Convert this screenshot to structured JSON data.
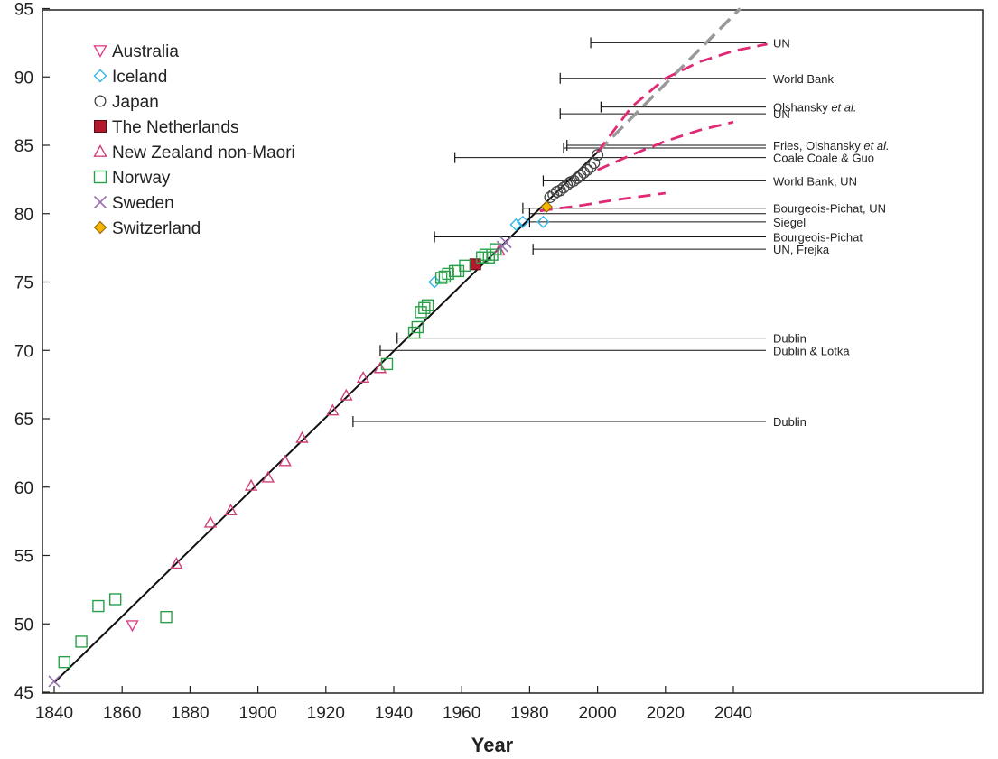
{
  "chart_data": {
    "type": "scatter",
    "xlabel": "Year",
    "ylabel": "",
    "xlim": [
      1840,
      2050
    ],
    "ylim": [
      45,
      95
    ],
    "xticks": [
      1840,
      1860,
      1880,
      1900,
      1920,
      1940,
      1960,
      1980,
      2000,
      2020,
      2040
    ],
    "yticks": [
      45,
      50,
      55,
      60,
      65,
      70,
      75,
      80,
      85,
      90,
      95
    ],
    "grid": false,
    "legend_position": "top-left",
    "series": [
      {
        "name": "Australia",
        "marker": "triangle-down",
        "color": "#e0408a",
        "points": [
          [
            1863,
            49.9
          ]
        ]
      },
      {
        "name": "Iceland",
        "marker": "diamond",
        "color": "#35b6e8",
        "points": [
          [
            1952,
            75.0
          ],
          [
            1976,
            79.2
          ],
          [
            1978,
            79.4
          ],
          [
            1984,
            79.4
          ]
        ]
      },
      {
        "name": "Japan",
        "marker": "circle",
        "color": "#444444",
        "points": [
          [
            1986,
            81.2
          ],
          [
            1987,
            81.4
          ],
          [
            1988,
            81.6
          ],
          [
            1989,
            81.7
          ],
          [
            1990,
            81.9
          ],
          [
            1991,
            82.1
          ],
          [
            1992,
            82.3
          ],
          [
            1993,
            82.4
          ],
          [
            1994,
            82.6
          ],
          [
            1995,
            82.8
          ],
          [
            1996,
            83.0
          ],
          [
            1997,
            83.2
          ],
          [
            1998,
            83.4
          ],
          [
            1999,
            83.7
          ],
          [
            2000,
            84.3
          ]
        ]
      },
      {
        "name": "The Netherlands",
        "marker": "square-filled",
        "color": "#b3192e",
        "points": [
          [
            1964,
            76.3
          ]
        ]
      },
      {
        "name": "New Zealand non-Maori",
        "marker": "triangle-up",
        "color": "#d0407a",
        "points": [
          [
            1876,
            54.4
          ],
          [
            1886,
            57.4
          ],
          [
            1892,
            58.3
          ],
          [
            1898,
            60.1
          ],
          [
            1903,
            60.7
          ],
          [
            1908,
            61.9
          ],
          [
            1913,
            63.6
          ],
          [
            1922,
            65.6
          ],
          [
            1926,
            66.7
          ],
          [
            1931,
            68.0
          ],
          [
            1936,
            68.7
          ],
          [
            1971,
            77.3
          ]
        ]
      },
      {
        "name": "Norway",
        "marker": "square",
        "color": "#2aa04a",
        "points": [
          [
            1843,
            47.2
          ],
          [
            1848,
            48.7
          ],
          [
            1853,
            51.3
          ],
          [
            1858,
            51.8
          ],
          [
            1873,
            50.5
          ],
          [
            1938,
            69.0
          ],
          [
            1946,
            71.3
          ],
          [
            1947,
            71.7
          ],
          [
            1948,
            72.8
          ],
          [
            1949,
            73.1
          ],
          [
            1950,
            73.3
          ],
          [
            1954,
            75.3
          ],
          [
            1955,
            75.4
          ],
          [
            1956,
            75.6
          ],
          [
            1958,
            75.8
          ],
          [
            1959,
            75.8
          ],
          [
            1961,
            76.2
          ],
          [
            1966,
            76.8
          ],
          [
            1967,
            77.0
          ],
          [
            1968,
            76.8
          ],
          [
            1969,
            77.0
          ],
          [
            1970,
            77.4
          ]
        ]
      },
      {
        "name": "Sweden",
        "marker": "x",
        "color": "#9a6fb0",
        "points": [
          [
            1840,
            45.8
          ],
          [
            1972,
            77.6
          ],
          [
            1973,
            77.9
          ]
        ]
      },
      {
        "name": "Switzerland",
        "marker": "diamond-filled",
        "color": "#f4b400",
        "points": [
          [
            1985,
            80.5
          ]
        ]
      }
    ],
    "trend_line": {
      "x": [
        1840,
        2000
      ],
      "y": [
        45.7,
        84.5
      ],
      "color": "#111111"
    },
    "extrapolation_line": {
      "x": [
        2000,
        2042
      ],
      "y": [
        84.5,
        95.0
      ],
      "color": "#999999",
      "dash": true
    },
    "projection_curves": [
      {
        "color": "#e02a74",
        "points": [
          [
            2000,
            84.5
          ],
          [
            2010,
            87.8
          ],
          [
            2020,
            89.9
          ],
          [
            2030,
            91.1
          ],
          [
            2040,
            91.9
          ],
          [
            2050,
            92.4
          ]
        ]
      },
      {
        "color": "#e02a74",
        "points": [
          [
            2000,
            83.2
          ],
          [
            2010,
            84.3
          ],
          [
            2020,
            85.3
          ],
          [
            2030,
            86.1
          ],
          [
            2040,
            86.7
          ]
        ]
      },
      {
        "color": "#e02a74",
        "points": [
          [
            1983,
            80.2
          ],
          [
            1995,
            80.6
          ],
          [
            2005,
            81.0
          ],
          [
            2020,
            81.5
          ]
        ]
      }
    ],
    "projections": [
      {
        "label": "UN",
        "year": 1998,
        "value": 92.5
      },
      {
        "label": "World Bank",
        "year": 1989,
        "value": 89.9
      },
      {
        "label_parts": [
          {
            "text": "Olshansky ",
            "italic": false
          },
          {
            "text": "et al.",
            "italic": true
          }
        ],
        "year": 2001,
        "value": 87.8
      },
      {
        "label": "UN",
        "year": 1989,
        "value": 87.3
      },
      {
        "label_parts": [
          {
            "text": "Fries, Olshansky ",
            "italic": false
          },
          {
            "text": "et al.",
            "italic": true
          }
        ],
        "year": 1991,
        "value": 85.0
      },
      {
        "label": "",
        "year": 1990,
        "value": 84.8
      },
      {
        "label": "Coale   Coale & Guo",
        "year": 1958,
        "value": 84.1
      },
      {
        "label": "World Bank, UN",
        "year": 1984,
        "value": 82.4
      },
      {
        "label": "Bourgeois-Pichat, UN",
        "year": 1978,
        "value": 80.4
      },
      {
        "label": "",
        "year": 1980,
        "value": 80.0
      },
      {
        "label": "Siegel",
        "year": 1980,
        "value": 79.4
      },
      {
        "label": "Bourgeois-Pichat",
        "year": 1952,
        "value": 78.3
      },
      {
        "label": "UN, Frejka",
        "year": 1981,
        "value": 77.4
      },
      {
        "label": "Dublin",
        "year": 1941,
        "value": 70.9
      },
      {
        "label": "Dublin & Lotka",
        "year": 1936,
        "value": 70.0
      },
      {
        "label": "Dublin",
        "year": 1928,
        "value": 64.8
      }
    ]
  }
}
